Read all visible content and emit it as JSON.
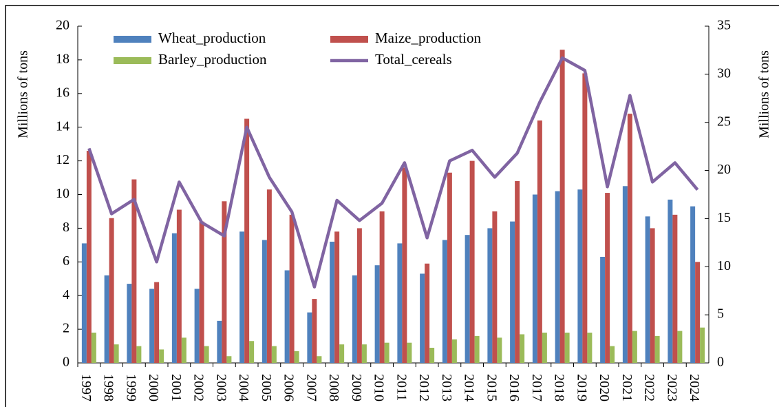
{
  "chart_data": {
    "type": "bar_line",
    "ylabel": "Millions of tons",
    "y2label": "Millions of tons",
    "categories": [
      "1997",
      "1998",
      "1999",
      "2000",
      "2001",
      "2002",
      "2003",
      "2004",
      "2005",
      "2006",
      "2007",
      "2008",
      "2009",
      "2010",
      "2011",
      "2012",
      "2013",
      "2014",
      "2015",
      "2016",
      "2017",
      "2018",
      "2019",
      "2020",
      "2021",
      "2022",
      "2023",
      "2024"
    ],
    "series": [
      {
        "name": "Wheat_production",
        "type": "bar",
        "color": "#4f81bd",
        "values": [
          7.1,
          5.2,
          4.7,
          4.4,
          7.7,
          4.4,
          2.5,
          7.8,
          7.3,
          5.5,
          3.0,
          7.2,
          5.2,
          5.8,
          7.1,
          5.3,
          7.3,
          7.6,
          8.0,
          8.4,
          10.0,
          10.2,
          10.3,
          6.3,
          10.5,
          8.7,
          9.7,
          9.3
        ]
      },
      {
        "name": "Maize_production",
        "type": "bar",
        "color": "#c0504d",
        "values": [
          12.6,
          8.6,
          10.9,
          4.8,
          9.1,
          8.4,
          9.6,
          14.5,
          10.3,
          8.8,
          3.8,
          7.8,
          8.0,
          9.0,
          11.6,
          5.9,
          11.3,
          12.0,
          9.0,
          10.8,
          14.4,
          18.6,
          17.2,
          10.1,
          14.8,
          8.0,
          8.8,
          6.0
        ]
      },
      {
        "name": "Barley_production",
        "type": "bar",
        "color": "#9bbb59",
        "values": [
          1.8,
          1.1,
          1.0,
          0.8,
          1.5,
          1.0,
          0.4,
          1.3,
          1.0,
          0.7,
          0.4,
          1.1,
          1.1,
          1.2,
          1.2,
          0.9,
          1.4,
          1.6,
          1.5,
          1.7,
          1.8,
          1.8,
          1.8,
          1.0,
          1.9,
          1.6,
          1.9,
          2.1
        ]
      },
      {
        "name": "Total_cereals",
        "type": "line",
        "axis": "y2",
        "color": "#8064a2",
        "values": [
          22.3,
          15.5,
          17.0,
          10.5,
          18.8,
          14.6,
          13.2,
          24.5,
          19.3,
          15.7,
          7.9,
          16.9,
          14.8,
          16.6,
          20.8,
          13.0,
          21.0,
          22.1,
          19.3,
          21.8,
          27.1,
          31.7,
          30.4,
          18.3,
          27.8,
          18.8,
          20.8,
          18.0
        ]
      }
    ],
    "ylim": [
      0,
      20
    ],
    "yticks": [
      0,
      2,
      4,
      6,
      8,
      10,
      12,
      14,
      16,
      18,
      20
    ],
    "y2lim": [
      0,
      35
    ],
    "y2ticks": [
      0,
      5,
      10,
      15,
      20,
      25,
      30,
      35
    ]
  }
}
